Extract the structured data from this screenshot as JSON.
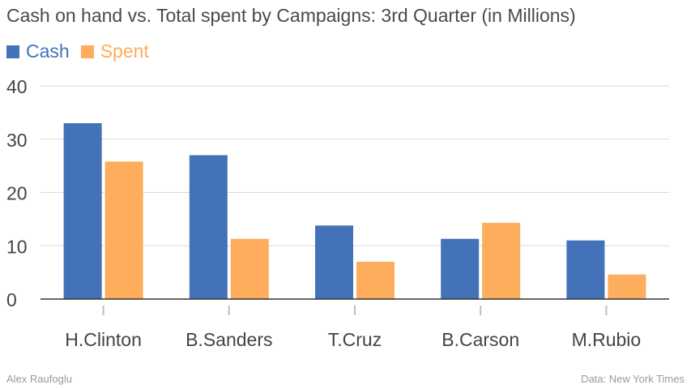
{
  "chart_data": {
    "type": "bar",
    "title": "Cash on hand vs. Total spent by Campaigns: 3rd Quarter (in Millions)",
    "categories": [
      "H.Clinton",
      "B.Sanders",
      "T.Cruz",
      "B.Carson",
      "M.Rubio"
    ],
    "series": [
      {
        "name": "Cash",
        "color": "#4472b8",
        "values": [
          33,
          27,
          13.8,
          11.3,
          11
        ]
      },
      {
        "name": "Spent",
        "color": "#fdad5c",
        "values": [
          25.8,
          11.3,
          7,
          14.3,
          4.6
        ]
      }
    ],
    "yticks": [
      0,
      10,
      20,
      30,
      40
    ],
    "ylim": [
      0,
      40
    ],
    "xlabel": "",
    "ylabel": "",
    "grid": true,
    "legend_position": "top-left"
  },
  "credits": {
    "author": "Alex Raufoglu",
    "source": "Data: New York Times"
  }
}
